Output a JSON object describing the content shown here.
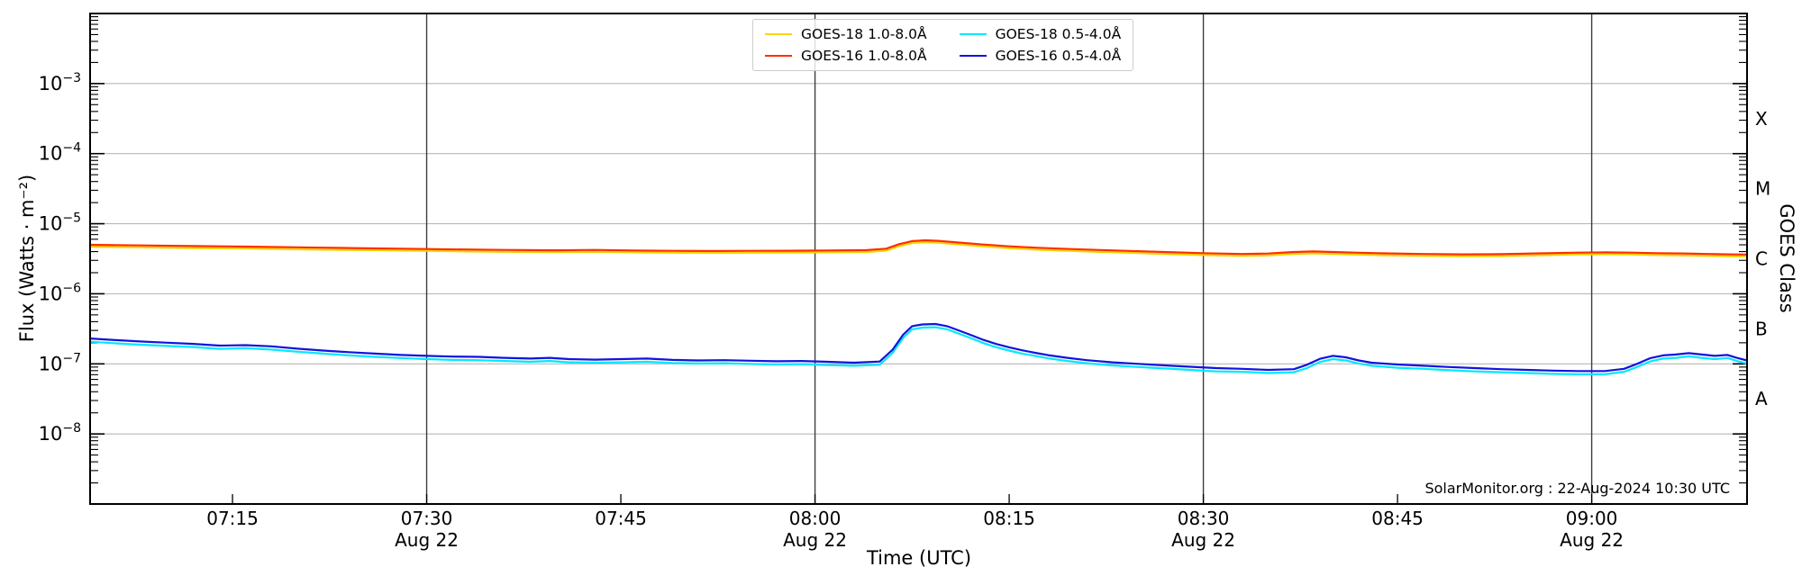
{
  "watermark": "SolarMonitor.org : 22-Aug-2024 10:30 UTC",
  "chart_data": {
    "type": "line",
    "title": "",
    "xlabel": "Time (UTC)",
    "ylabel": "Flux (Watts · m⁻²)",
    "ylabel_right": "GOES Class",
    "date": "Aug 22",
    "x_unit": "minutes after 00:00 UTC",
    "xlim": [
      424,
      552
    ],
    "ylog": true,
    "ylim_exp": [
      -9,
      -2
    ],
    "grid": true,
    "grid_color": "#b8b8b8",
    "dayline_color": "#3d3d3d",
    "frame_color": "#000000",
    "x_ticks": [
      {
        "t": 435,
        "label": "07:15"
      },
      {
        "t": 450,
        "label": "07:30"
      },
      {
        "t": 465,
        "label": "07:45"
      },
      {
        "t": 480,
        "label": "08:00"
      },
      {
        "t": 495,
        "label": "08:15"
      },
      {
        "t": 510,
        "label": "08:30"
      },
      {
        "t": 525,
        "label": "08:45"
      },
      {
        "t": 540,
        "label": "09:00"
      }
    ],
    "day_lines": [
      {
        "t": 450,
        "label": "Aug 22"
      },
      {
        "t": 480,
        "label": "Aug 22"
      },
      {
        "t": 510,
        "label": "Aug 22"
      },
      {
        "t": 540,
        "label": "Aug 22"
      }
    ],
    "y_tick_exponents": [
      -3,
      -4,
      -5,
      -6,
      -7,
      -8
    ],
    "goes_classes": [
      {
        "label": "X",
        "exp": -3.5
      },
      {
        "label": "M",
        "exp": -4.5
      },
      {
        "label": "C",
        "exp": -5.5
      },
      {
        "label": "B",
        "exp": -6.5
      },
      {
        "label": "A",
        "exp": -7.5
      }
    ],
    "legend": {
      "position": "upper center",
      "columns": 2
    },
    "series": [
      {
        "name": "GOES-18 1.0-8.0Å",
        "color": "#ffd400",
        "points": [
          [
            424,
            4.7e-06
          ],
          [
            428,
            4.6e-06
          ],
          [
            432,
            4.5e-06
          ],
          [
            436,
            4.44e-06
          ],
          [
            440,
            4.32e-06
          ],
          [
            444,
            4.23e-06
          ],
          [
            448,
            4.14e-06
          ],
          [
            452,
            4.04e-06
          ],
          [
            456,
            3.97e-06
          ],
          [
            460,
            3.93e-06
          ],
          [
            463,
            3.97e-06
          ],
          [
            466,
            3.9e-06
          ],
          [
            469,
            3.85e-06
          ],
          [
            472,
            3.84e-06
          ],
          [
            475,
            3.85e-06
          ],
          [
            478,
            3.87e-06
          ],
          [
            481,
            3.9e-06
          ],
          [
            484,
            3.95e-06
          ],
          [
            485.5,
            4.14e-06
          ],
          [
            486.5,
            4.79e-06
          ],
          [
            487.5,
            5.31e-06
          ],
          [
            488.5,
            5.45e-06
          ],
          [
            489.5,
            5.36e-06
          ],
          [
            491,
            5.08e-06
          ],
          [
            493,
            4.75e-06
          ],
          [
            495,
            4.47e-06
          ],
          [
            497,
            4.28e-06
          ],
          [
            499,
            4.14e-06
          ],
          [
            501,
            4.02e-06
          ],
          [
            504,
            3.85e-06
          ],
          [
            507,
            3.71e-06
          ],
          [
            510,
            3.57e-06
          ],
          [
            513,
            3.48e-06
          ],
          [
            515,
            3.53e-06
          ],
          [
            517,
            3.71e-06
          ],
          [
            518.5,
            3.78e-06
          ],
          [
            520,
            3.71e-06
          ],
          [
            522,
            3.62e-06
          ],
          [
            524,
            3.55e-06
          ],
          [
            527,
            3.48e-06
          ],
          [
            530,
            3.44e-06
          ],
          [
            533,
            3.46e-06
          ],
          [
            536,
            3.55e-06
          ],
          [
            539,
            3.64e-06
          ],
          [
            541,
            3.67e-06
          ],
          [
            543,
            3.64e-06
          ],
          [
            545,
            3.57e-06
          ],
          [
            547,
            3.53e-06
          ],
          [
            549,
            3.48e-06
          ],
          [
            551,
            3.43e-06
          ],
          [
            552,
            3.4e-06
          ]
        ]
      },
      {
        "name": "GOES-16 1.0-8.0Å",
        "color": "#ff2e00",
        "points": [
          [
            424,
            5e-06
          ],
          [
            428,
            4.9e-06
          ],
          [
            432,
            4.8e-06
          ],
          [
            436,
            4.72e-06
          ],
          [
            440,
            4.6e-06
          ],
          [
            444,
            4.5e-06
          ],
          [
            448,
            4.4e-06
          ],
          [
            452,
            4.3e-06
          ],
          [
            456,
            4.22e-06
          ],
          [
            460,
            4.18e-06
          ],
          [
            463,
            4.22e-06
          ],
          [
            466,
            4.15e-06
          ],
          [
            469,
            4.1e-06
          ],
          [
            472,
            4.08e-06
          ],
          [
            475,
            4.1e-06
          ],
          [
            478,
            4.12e-06
          ],
          [
            481,
            4.15e-06
          ],
          [
            484,
            4.2e-06
          ],
          [
            485.5,
            4.4e-06
          ],
          [
            486.5,
            5.1e-06
          ],
          [
            487.5,
            5.65e-06
          ],
          [
            488.5,
            5.8e-06
          ],
          [
            489.5,
            5.7e-06
          ],
          [
            491,
            5.4e-06
          ],
          [
            493,
            5.05e-06
          ],
          [
            495,
            4.75e-06
          ],
          [
            497,
            4.55e-06
          ],
          [
            499,
            4.4e-06
          ],
          [
            501,
            4.28e-06
          ],
          [
            504,
            4.1e-06
          ],
          [
            507,
            3.95e-06
          ],
          [
            510,
            3.8e-06
          ],
          [
            513,
            3.7e-06
          ],
          [
            515,
            3.75e-06
          ],
          [
            517,
            3.95e-06
          ],
          [
            518.5,
            4.02e-06
          ],
          [
            520,
            3.95e-06
          ],
          [
            522,
            3.85e-06
          ],
          [
            524,
            3.78e-06
          ],
          [
            527,
            3.7e-06
          ],
          [
            530,
            3.66e-06
          ],
          [
            533,
            3.68e-06
          ],
          [
            536,
            3.78e-06
          ],
          [
            539,
            3.87e-06
          ],
          [
            541,
            3.9e-06
          ],
          [
            543,
            3.87e-06
          ],
          [
            545,
            3.8e-06
          ],
          [
            547,
            3.76e-06
          ],
          [
            549,
            3.7e-06
          ],
          [
            551,
            3.65e-06
          ],
          [
            552,
            3.62e-06
          ]
        ]
      },
      {
        "name": "GOES-18 0.5-4.0Å",
        "color": "#00e8ff",
        "points": [
          [
            424,
            2.07e-07
          ],
          [
            426,
            1.96e-07
          ],
          [
            428,
            1.87e-07
          ],
          [
            430,
            1.8e-07
          ],
          [
            432,
            1.74e-07
          ],
          [
            434,
            1.64e-07
          ],
          [
            436,
            1.67e-07
          ],
          [
            438,
            1.6e-07
          ],
          [
            440,
            1.49e-07
          ],
          [
            442,
            1.4e-07
          ],
          [
            444,
            1.32e-07
          ],
          [
            446,
            1.26e-07
          ],
          [
            448,
            1.21e-07
          ],
          [
            450,
            1.17e-07
          ],
          [
            452,
            1.14e-07
          ],
          [
            454,
            1.13e-07
          ],
          [
            456,
            1.1e-07
          ],
          [
            458,
            1.07e-07
          ],
          [
            459.5,
            1.1e-07
          ],
          [
            461,
            1.05e-07
          ],
          [
            463,
            1.04e-07
          ],
          [
            465,
            1.05e-07
          ],
          [
            467,
            1.07e-07
          ],
          [
            469,
            1.03e-07
          ],
          [
            471,
            1.01e-07
          ],
          [
            473,
            1.02e-07
          ],
          [
            475,
            1e-07
          ],
          [
            477,
            9.8e-08
          ],
          [
            479,
            9.9e-08
          ],
          [
            481,
            9.6e-08
          ],
          [
            483,
            9.4e-08
          ],
          [
            485,
            9.7e-08
          ],
          [
            486,
            1.44e-07
          ],
          [
            486.8,
            2.34e-07
          ],
          [
            487.5,
            3.1e-07
          ],
          [
            488.3,
            3.29e-07
          ],
          [
            489.3,
            3.33e-07
          ],
          [
            490.2,
            3.11e-07
          ],
          [
            491,
            2.75e-07
          ],
          [
            492,
            2.34e-07
          ],
          [
            493,
            1.98e-07
          ],
          [
            494,
            1.73e-07
          ],
          [
            495,
            1.55e-07
          ],
          [
            496,
            1.4e-07
          ],
          [
            497,
            1.3e-07
          ],
          [
            498,
            1.2e-07
          ],
          [
            499.5,
            1.1e-07
          ],
          [
            501,
            1.02e-07
          ],
          [
            503,
            9.5e-08
          ],
          [
            505,
            9e-08
          ],
          [
            507,
            8.6e-08
          ],
          [
            509,
            8.2e-08
          ],
          [
            511,
            7.8e-08
          ],
          [
            513,
            7.7e-08
          ],
          [
            515,
            7.4e-08
          ],
          [
            517,
            7.6e-08
          ],
          [
            518,
            8.7e-08
          ],
          [
            519,
            1.06e-07
          ],
          [
            520,
            1.17e-07
          ],
          [
            521,
            1.12e-07
          ],
          [
            522,
            1.01e-07
          ],
          [
            523,
            9.4e-08
          ],
          [
            525,
            8.8e-08
          ],
          [
            527,
            8.5e-08
          ],
          [
            529,
            8.1e-08
          ],
          [
            531,
            7.8e-08
          ],
          [
            533,
            7.6e-08
          ],
          [
            535,
            7.4e-08
          ],
          [
            537,
            7.2e-08
          ],
          [
            539,
            7.1e-08
          ],
          [
            541,
            7.1e-08
          ],
          [
            542.5,
            7.7e-08
          ],
          [
            543.5,
            9e-08
          ],
          [
            544.5,
            1.08e-07
          ],
          [
            545.5,
            1.19e-07
          ],
          [
            546.5,
            1.22e-07
          ],
          [
            547.5,
            1.28e-07
          ],
          [
            548.5,
            1.22e-07
          ],
          [
            549.5,
            1.17e-07
          ],
          [
            550.5,
            1.21e-07
          ],
          [
            551.2,
            1.1e-07
          ],
          [
            552,
            1.01e-07
          ]
        ]
      },
      {
        "name": "GOES-16 0.5-4.0Å",
        "color": "#1212e0",
        "points": [
          [
            424,
            2.3e-07
          ],
          [
            426,
            2.18e-07
          ],
          [
            428,
            2.08e-07
          ],
          [
            430,
            2e-07
          ],
          [
            432,
            1.93e-07
          ],
          [
            434,
            1.82e-07
          ],
          [
            436,
            1.85e-07
          ],
          [
            438,
            1.78e-07
          ],
          [
            440,
            1.65e-07
          ],
          [
            442,
            1.55e-07
          ],
          [
            444,
            1.47e-07
          ],
          [
            446,
            1.4e-07
          ],
          [
            448,
            1.34e-07
          ],
          [
            450,
            1.3e-07
          ],
          [
            452,
            1.27e-07
          ],
          [
            454,
            1.26e-07
          ],
          [
            456,
            1.22e-07
          ],
          [
            458,
            1.19e-07
          ],
          [
            459.5,
            1.22e-07
          ],
          [
            461,
            1.17e-07
          ],
          [
            463,
            1.15e-07
          ],
          [
            465,
            1.17e-07
          ],
          [
            467,
            1.19e-07
          ],
          [
            469,
            1.14e-07
          ],
          [
            471,
            1.12e-07
          ],
          [
            473,
            1.13e-07
          ],
          [
            475,
            1.11e-07
          ],
          [
            477,
            1.09e-07
          ],
          [
            479,
            1.1e-07
          ],
          [
            481,
            1.07e-07
          ],
          [
            483,
            1.04e-07
          ],
          [
            485,
            1.08e-07
          ],
          [
            486,
            1.6e-07
          ],
          [
            486.8,
            2.6e-07
          ],
          [
            487.5,
            3.45e-07
          ],
          [
            488.3,
            3.65e-07
          ],
          [
            489.3,
            3.7e-07
          ],
          [
            490.2,
            3.45e-07
          ],
          [
            491,
            3.05e-07
          ],
          [
            492,
            2.6e-07
          ],
          [
            493,
            2.2e-07
          ],
          [
            494,
            1.92e-07
          ],
          [
            495,
            1.72e-07
          ],
          [
            496,
            1.56e-07
          ],
          [
            497,
            1.44e-07
          ],
          [
            498,
            1.33e-07
          ],
          [
            499.5,
            1.22e-07
          ],
          [
            501,
            1.13e-07
          ],
          [
            503,
            1.05e-07
          ],
          [
            505,
            1e-07
          ],
          [
            507,
            9.5e-08
          ],
          [
            509,
            9.1e-08
          ],
          [
            511,
            8.7e-08
          ],
          [
            513,
            8.5e-08
          ],
          [
            515,
            8.2e-08
          ],
          [
            517,
            8.4e-08
          ],
          [
            518,
            9.7e-08
          ],
          [
            519,
            1.18e-07
          ],
          [
            520,
            1.3e-07
          ],
          [
            521,
            1.24e-07
          ],
          [
            522,
            1.12e-07
          ],
          [
            523,
            1.04e-07
          ],
          [
            525,
            9.8e-08
          ],
          [
            527,
            9.4e-08
          ],
          [
            529,
            9e-08
          ],
          [
            531,
            8.7e-08
          ],
          [
            533,
            8.4e-08
          ],
          [
            535,
            8.2e-08
          ],
          [
            537,
            8e-08
          ],
          [
            539,
            7.9e-08
          ],
          [
            541,
            7.9e-08
          ],
          [
            542.5,
            8.5e-08
          ],
          [
            543.5,
            1e-07
          ],
          [
            544.5,
            1.2e-07
          ],
          [
            545.5,
            1.32e-07
          ],
          [
            546.5,
            1.36e-07
          ],
          [
            547.5,
            1.42e-07
          ],
          [
            548.5,
            1.36e-07
          ],
          [
            549.5,
            1.3e-07
          ],
          [
            550.5,
            1.34e-07
          ],
          [
            551.2,
            1.22e-07
          ],
          [
            552,
            1.12e-07
          ]
        ]
      }
    ]
  }
}
